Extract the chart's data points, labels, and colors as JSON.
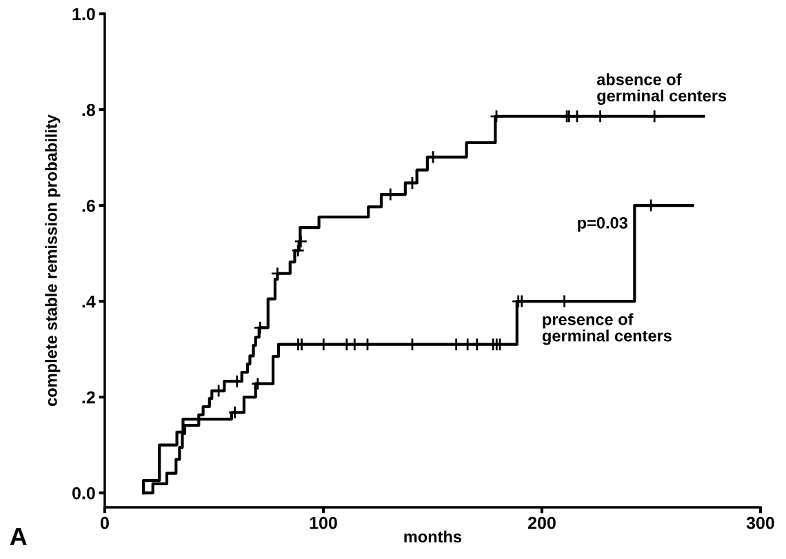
{
  "chart_data": {
    "type": "step",
    "xlabel": "months",
    "ylabel": "complete stable remission probability",
    "xlim": [
      0,
      300
    ],
    "ylim": [
      -0.03,
      1.0
    ],
    "xticks": [
      0,
      100,
      200,
      300
    ],
    "yticks": [
      {
        "value": 0,
        "label": "0.0"
      },
      {
        "value": 0.2,
        "label": ".2"
      },
      {
        "value": 0.4,
        "label": ".4"
      },
      {
        "value": 0.6,
        "label": ".6"
      },
      {
        "value": 0.8,
        "label": ".8"
      },
      {
        "value": 1.0,
        "label": "1.0"
      }
    ],
    "grid": false,
    "legend": false,
    "annotations": [
      "p=0.03",
      "A"
    ],
    "series": [
      {
        "name": "absence of\ngerminal centers",
        "color": "#000000",
        "x": [
          17.7,
          22,
          28.4,
          32.6,
          34.2,
          35.5,
          36.6,
          43,
          45,
          47.9,
          49,
          54.7,
          62.7,
          65.3,
          66.4,
          68,
          69,
          70.6,
          74.7,
          77.9,
          79,
          84.8,
          86.9,
          88.9,
          89.4,
          98,
          120.6,
          126.5,
          137.5,
          142.8,
          147.6,
          165.5,
          178.7,
          274
        ],
        "values": [
          0,
          0.019,
          0.041,
          0.07,
          0.095,
          0.124,
          0.141,
          0.163,
          0.18,
          0.197,
          0.213,
          0.233,
          0.252,
          0.269,
          0.286,
          0.308,
          0.325,
          0.345,
          0.405,
          0.446,
          0.458,
          0.482,
          0.506,
          0.525,
          0.554,
          0.576,
          0.597,
          0.623,
          0.647,
          0.674,
          0.701,
          0.731,
          0.786,
          0.786
        ]
      },
      {
        "name": "presence of\ngerminal centers",
        "color": "#000000",
        "x": [
          17.7,
          17.7,
          25,
          33,
          35.8,
          58,
          63.7,
          69,
          77,
          79.5,
          188.6,
          242.4,
          269
        ],
        "values": [
          0,
          0.026,
          0.1,
          0.127,
          0.154,
          0.168,
          0.2,
          0.228,
          0.285,
          0.31,
          0.4,
          0.6,
          0.6
        ]
      },
      {
        "type": "scatter",
        "marker": "cross",
        "color": "#000000",
        "x": [
          52.1,
          60.5,
          71.1,
          79,
          88.4,
          89.7,
          130.7,
          140.7,
          150.2,
          179.2,
          211.4,
          212.4,
          216.1,
          226.7,
          251.5
        ],
        "values": [
          0.213,
          0.233,
          0.345,
          0.458,
          0.506,
          0.525,
          0.623,
          0.647,
          0.701,
          0.786,
          0.786,
          0.786,
          0.786,
          0.786,
          0.786
        ]
      },
      {
        "type": "scatter",
        "marker": "cross",
        "color": "#000000",
        "x": [
          59.5,
          70,
          88.5,
          90.1,
          100.1,
          110.7,
          114.3,
          120.2,
          140.7,
          160.8,
          166,
          170.3,
          177.7,
          179.3,
          180.8,
          189.2,
          190.8,
          210.3,
          249.9
        ],
        "values": [
          0.168,
          0.228,
          0.31,
          0.31,
          0.31,
          0.31,
          0.31,
          0.31,
          0.31,
          0.31,
          0.31,
          0.31,
          0.31,
          0.31,
          0.31,
          0.4,
          0.4,
          0.4,
          0.6
        ]
      }
    ]
  }
}
